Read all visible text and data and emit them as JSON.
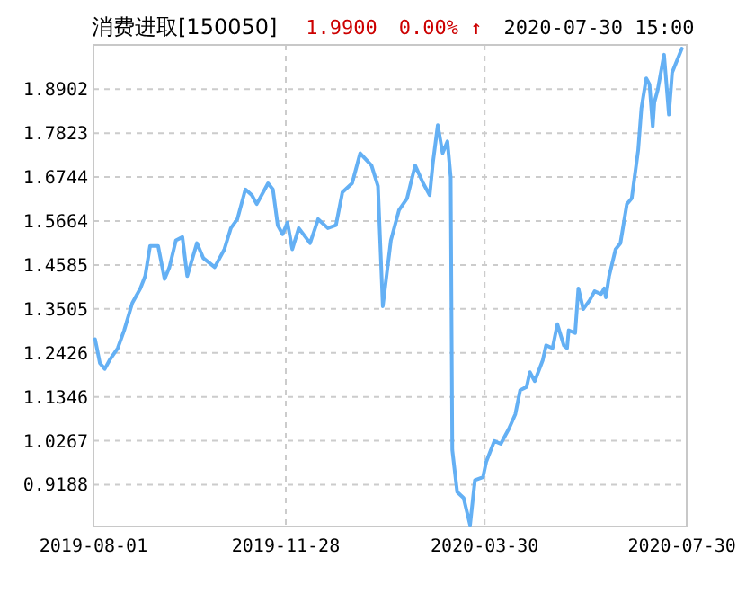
{
  "chart_data": {
    "type": "line",
    "title": "消费进取[150050]",
    "annotations": [
      "1.9900",
      "0.00% ↑",
      "2020-07-30 15:00"
    ],
    "x": [
      "2019-08-02",
      "2019-08-05",
      "2019-08-08",
      "2019-08-11",
      "2019-08-16",
      "2019-08-20",
      "2019-08-25",
      "2019-08-30",
      "2019-09-02",
      "2019-09-05",
      "2019-09-10",
      "2019-09-14",
      "2019-09-17",
      "2019-09-21",
      "2019-09-25",
      "2019-09-28",
      "2019-10-04",
      "2019-10-08",
      "2019-10-15",
      "2019-10-21",
      "2019-10-25",
      "2019-10-29",
      "2019-11-03",
      "2019-11-07",
      "2019-11-10",
      "2019-11-14",
      "2019-11-17",
      "2019-11-20",
      "2019-11-23",
      "2019-11-26",
      "2019-11-29",
      "2019-12-02",
      "2019-12-06",
      "2019-12-13",
      "2019-12-18",
      "2019-12-24",
      "2019-12-29",
      "2020-01-02",
      "2020-01-08",
      "2020-01-13",
      "2020-01-20",
      "2020-01-24",
      "2020-01-27",
      "2020-02-01",
      "2020-02-06",
      "2020-02-11",
      "2020-02-16",
      "2020-02-21",
      "2020-02-25",
      "2020-02-27",
      "2020-03-01",
      "2020-03-04",
      "2020-03-07",
      "2020-03-09",
      "2020-03-10",
      "2020-03-13",
      "2020-03-17",
      "2020-03-21",
      "2020-03-24",
      "2020-03-29",
      "2020-03-31",
      "2020-04-05",
      "2020-04-09",
      "2020-04-11",
      "2020-04-14",
      "2020-04-18",
      "2020-04-21",
      "2020-04-25",
      "2020-04-27",
      "2020-04-30",
      "2020-05-05",
      "2020-05-07",
      "2020-05-11",
      "2020-05-14",
      "2020-05-18",
      "2020-05-20",
      "2020-05-21",
      "2020-05-25",
      "2020-05-27",
      "2020-05-30",
      "2020-06-03",
      "2020-06-06",
      "2020-06-10",
      "2020-06-12",
      "2020-06-13",
      "2020-06-15",
      "2020-06-19",
      "2020-06-22",
      "2020-06-26",
      "2020-06-29",
      "2020-07-03",
      "2020-07-05",
      "2020-07-08",
      "2020-07-10",
      "2020-07-12",
      "2020-07-13",
      "2020-07-15",
      "2020-07-19",
      "2020-07-22",
      "2020-07-24",
      "2020-07-30"
    ],
    "values": [
      1.276,
      1.217,
      1.203,
      1.225,
      1.254,
      1.298,
      1.365,
      1.401,
      1.431,
      1.505,
      1.505,
      1.424,
      1.453,
      1.519,
      1.527,
      1.431,
      1.512,
      1.475,
      1.453,
      1.497,
      1.549,
      1.571,
      1.644,
      1.63,
      1.608,
      1.637,
      1.659,
      1.644,
      1.556,
      1.534,
      1.563,
      1.497,
      1.549,
      1.512,
      1.571,
      1.549,
      1.556,
      1.637,
      1.659,
      1.733,
      1.703,
      1.652,
      1.357,
      1.519,
      1.593,
      1.622,
      1.703,
      1.659,
      1.63,
      1.71,
      1.802,
      1.733,
      1.762,
      1.674,
      1.004,
      0.901,
      0.886,
      0.82,
      0.93,
      0.937,
      0.975,
      1.026,
      1.019,
      1.034,
      1.056,
      1.092,
      1.151,
      1.159,
      1.195,
      1.173,
      1.225,
      1.261,
      1.254,
      1.313,
      1.261,
      1.254,
      1.298,
      1.291,
      1.401,
      1.35,
      1.372,
      1.394,
      1.387,
      1.401,
      1.379,
      1.431,
      1.497,
      1.512,
      1.608,
      1.622,
      1.74,
      1.843,
      1.917,
      1.902,
      1.799,
      1.858,
      1.887,
      1.975,
      1.828,
      1.931,
      1.99
    ],
    "color": "#64b0f4",
    "xlim": [
      "2019-08-01",
      "2020-08-02"
    ],
    "xticks": [
      "2019-08-01",
      "2019-11-28",
      "2020-03-30",
      "2020-07-30"
    ],
    "ylim": [
      0.816,
      1.999
    ],
    "yticks": [
      0.9188,
      1.0267,
      1.1346,
      1.2426,
      1.3505,
      1.4585,
      1.5664,
      1.6744,
      1.7823,
      1.8902
    ],
    "grid": true
  }
}
